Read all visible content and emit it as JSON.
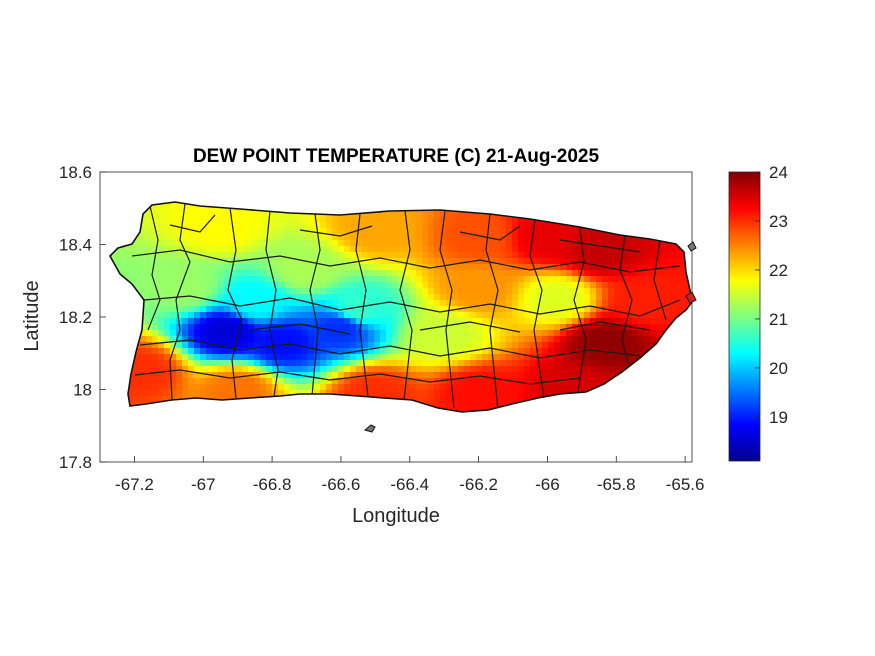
{
  "chart_data": {
    "type": "heatmap",
    "title": "DEW POINT TEMPERATURE (C) 21-Aug-2025",
    "xlabel": "Longitude",
    "ylabel": "Latitude",
    "xlim": [
      -67.3,
      -65.58
    ],
    "ylim": [
      17.8,
      18.6
    ],
    "xticks": [
      -67.2,
      -67,
      -66.8,
      -66.6,
      -66.4,
      -66.2,
      -66,
      -65.8,
      -65.6
    ],
    "xtick_labels": [
      "-67.2",
      "-67",
      "-66.8",
      "-66.6",
      "-66.4",
      "-66.2",
      "-66",
      "-65.8",
      "-65.6"
    ],
    "yticks": [
      17.8,
      18,
      18.2,
      18.4,
      18.6
    ],
    "ytick_labels": [
      "17.8",
      "18",
      "18.2",
      "18.4",
      "18.6"
    ],
    "colorbar": {
      "colormap": "jet",
      "range": [
        18.1,
        24
      ],
      "ticks": [
        19,
        20,
        21,
        22,
        23,
        24
      ],
      "tick_labels": [
        "19",
        "20",
        "21",
        "22",
        "23",
        "24"
      ]
    },
    "grid": false,
    "regions_shown": "Puerto Rico municipalities",
    "field_samples": [
      {
        "lon": -66.93,
        "lat": 18.16,
        "value": 18.6
      },
      {
        "lon": -66.77,
        "lat": 18.13,
        "value": 18.9
      },
      {
        "lon": -66.6,
        "lat": 18.17,
        "value": 19.1
      },
      {
        "lon": -66.85,
        "lat": 18.24,
        "value": 20.3
      },
      {
        "lon": -66.55,
        "lat": 18.22,
        "value": 20.6
      },
      {
        "lon": -67.05,
        "lat": 18.28,
        "value": 21.2
      },
      {
        "lon": -66.3,
        "lat": 18.15,
        "value": 21.5
      },
      {
        "lon": -66.7,
        "lat": 18.33,
        "value": 21.3
      },
      {
        "lon": -66.95,
        "lat": 18.45,
        "value": 21.8
      },
      {
        "lon": -66.5,
        "lat": 18.44,
        "value": 22.3
      },
      {
        "lon": -66.2,
        "lat": 18.42,
        "value": 22.8
      },
      {
        "lon": -66.2,
        "lat": 18.28,
        "value": 22.4
      },
      {
        "lon": -67.18,
        "lat": 18.05,
        "value": 23.0
      },
      {
        "lon": -66.9,
        "lat": 18.0,
        "value": 22.6
      },
      {
        "lon": -66.5,
        "lat": 17.99,
        "value": 23.0
      },
      {
        "lon": -66.2,
        "lat": 17.99,
        "value": 23.2
      },
      {
        "lon": -66.0,
        "lat": 18.42,
        "value": 23.4
      },
      {
        "lon": -65.85,
        "lat": 18.38,
        "value": 23.6
      },
      {
        "lon": -65.97,
        "lat": 18.25,
        "value": 21.6
      },
      {
        "lon": -65.72,
        "lat": 18.24,
        "value": 23.1
      },
      {
        "lon": -65.83,
        "lat": 18.13,
        "value": 23.9
      },
      {
        "lon": -65.92,
        "lat": 18.0,
        "value": 23.5
      }
    ]
  }
}
